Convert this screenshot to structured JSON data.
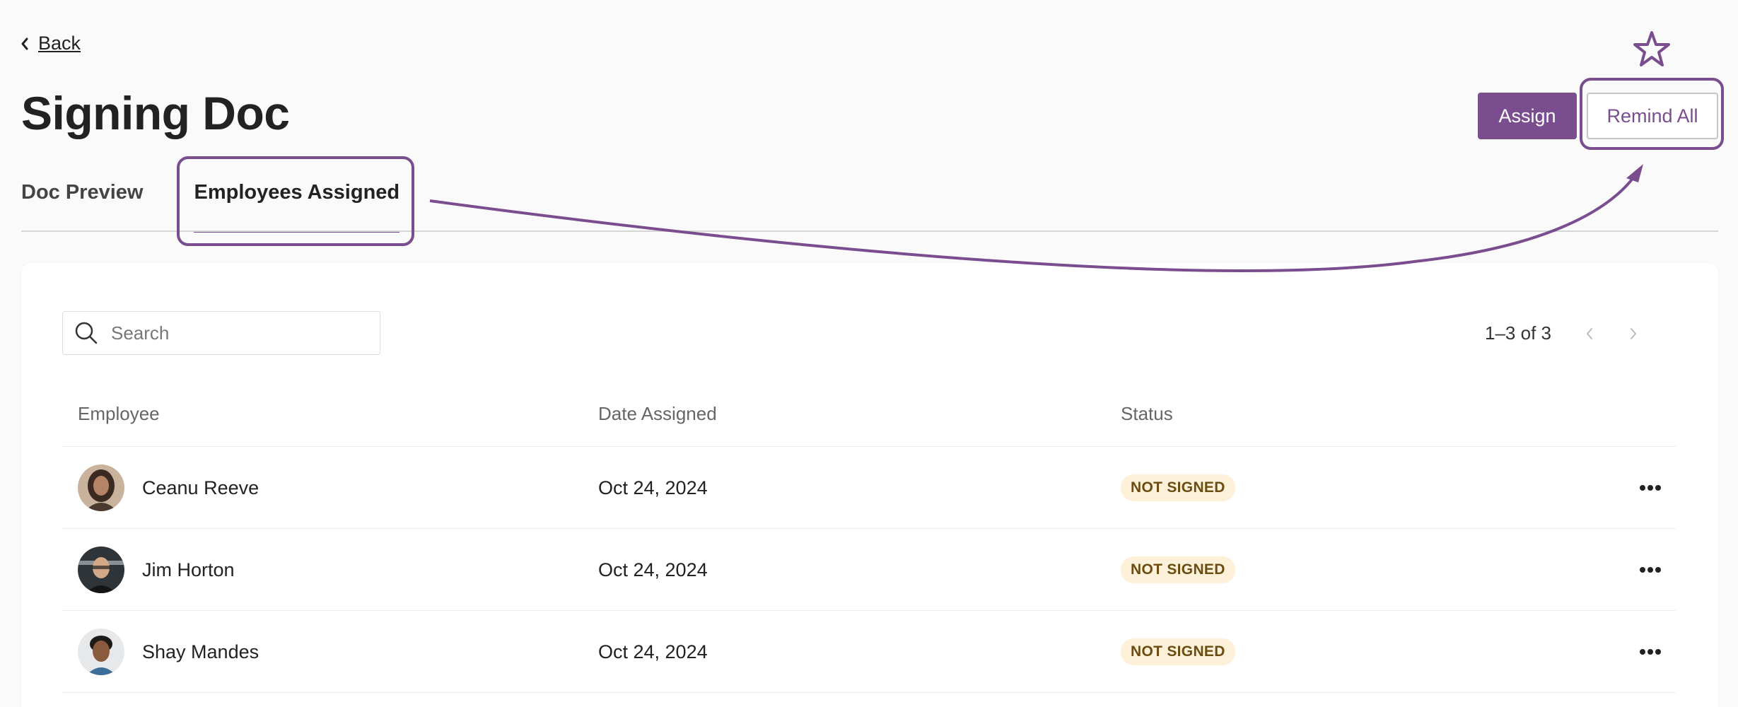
{
  "nav": {
    "back_label": "Back"
  },
  "page": {
    "title": "Signing Doc"
  },
  "actions": {
    "assign_label": "Assign",
    "remind_all_label": "Remind All"
  },
  "tabs": [
    {
      "label": "Doc Preview",
      "active": false
    },
    {
      "label": "Employees Assigned",
      "active": true
    }
  ],
  "search": {
    "placeholder": "Search",
    "value": ""
  },
  "pagination": {
    "range_text": "1–3 of 3"
  },
  "table": {
    "columns": [
      "Employee",
      "Date Assigned",
      "Status"
    ],
    "rows": [
      {
        "name": "Ceanu Reeve",
        "date": "Oct 24, 2024",
        "status": "NOT SIGNED"
      },
      {
        "name": "Jim Horton",
        "date": "Oct 24, 2024",
        "status": "NOT SIGNED"
      },
      {
        "name": "Shay Mandes",
        "date": "Oct 24, 2024",
        "status": "NOT SIGNED"
      }
    ]
  },
  "colors": {
    "accent": "#7a4d8f",
    "badge_bg": "#fdf1d9",
    "badge_text": "#6b4d12",
    "annotation": "#7a4d8f"
  },
  "icons": {
    "back": "chevron-left-icon",
    "search": "search-icon",
    "prev": "chevron-left-icon",
    "next": "chevron-right-icon",
    "row_menu": "more-horizontal-icon",
    "annotation": "star-icon"
  }
}
